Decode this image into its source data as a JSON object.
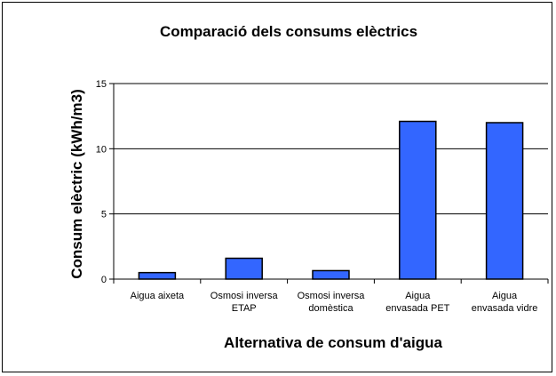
{
  "chart_data": {
    "type": "bar",
    "title": "Comparació dels consums elèctrics",
    "xlabel": "Alternativa de consum d'aigua",
    "ylabel": "Consum elèctric (kWh/m3)",
    "categories": [
      [
        "Aigua aixeta"
      ],
      [
        "Osmosi inversa",
        "ETAP"
      ],
      [
        "Osmosi inversa",
        "domèstica"
      ],
      [
        "Aigua",
        "envasada PET"
      ],
      [
        "Aigua",
        "envasada vidre"
      ]
    ],
    "values": [
      0.5,
      1.6,
      0.65,
      12.1,
      12.0
    ],
    "ylim": [
      0,
      15
    ],
    "yticks": [
      "0",
      "5",
      "10",
      "15"
    ],
    "grid": "horizontal",
    "legend": "none",
    "colors": {
      "bar": "#3366ff",
      "bar_stroke": "#000000",
      "grid": "#000000"
    }
  }
}
